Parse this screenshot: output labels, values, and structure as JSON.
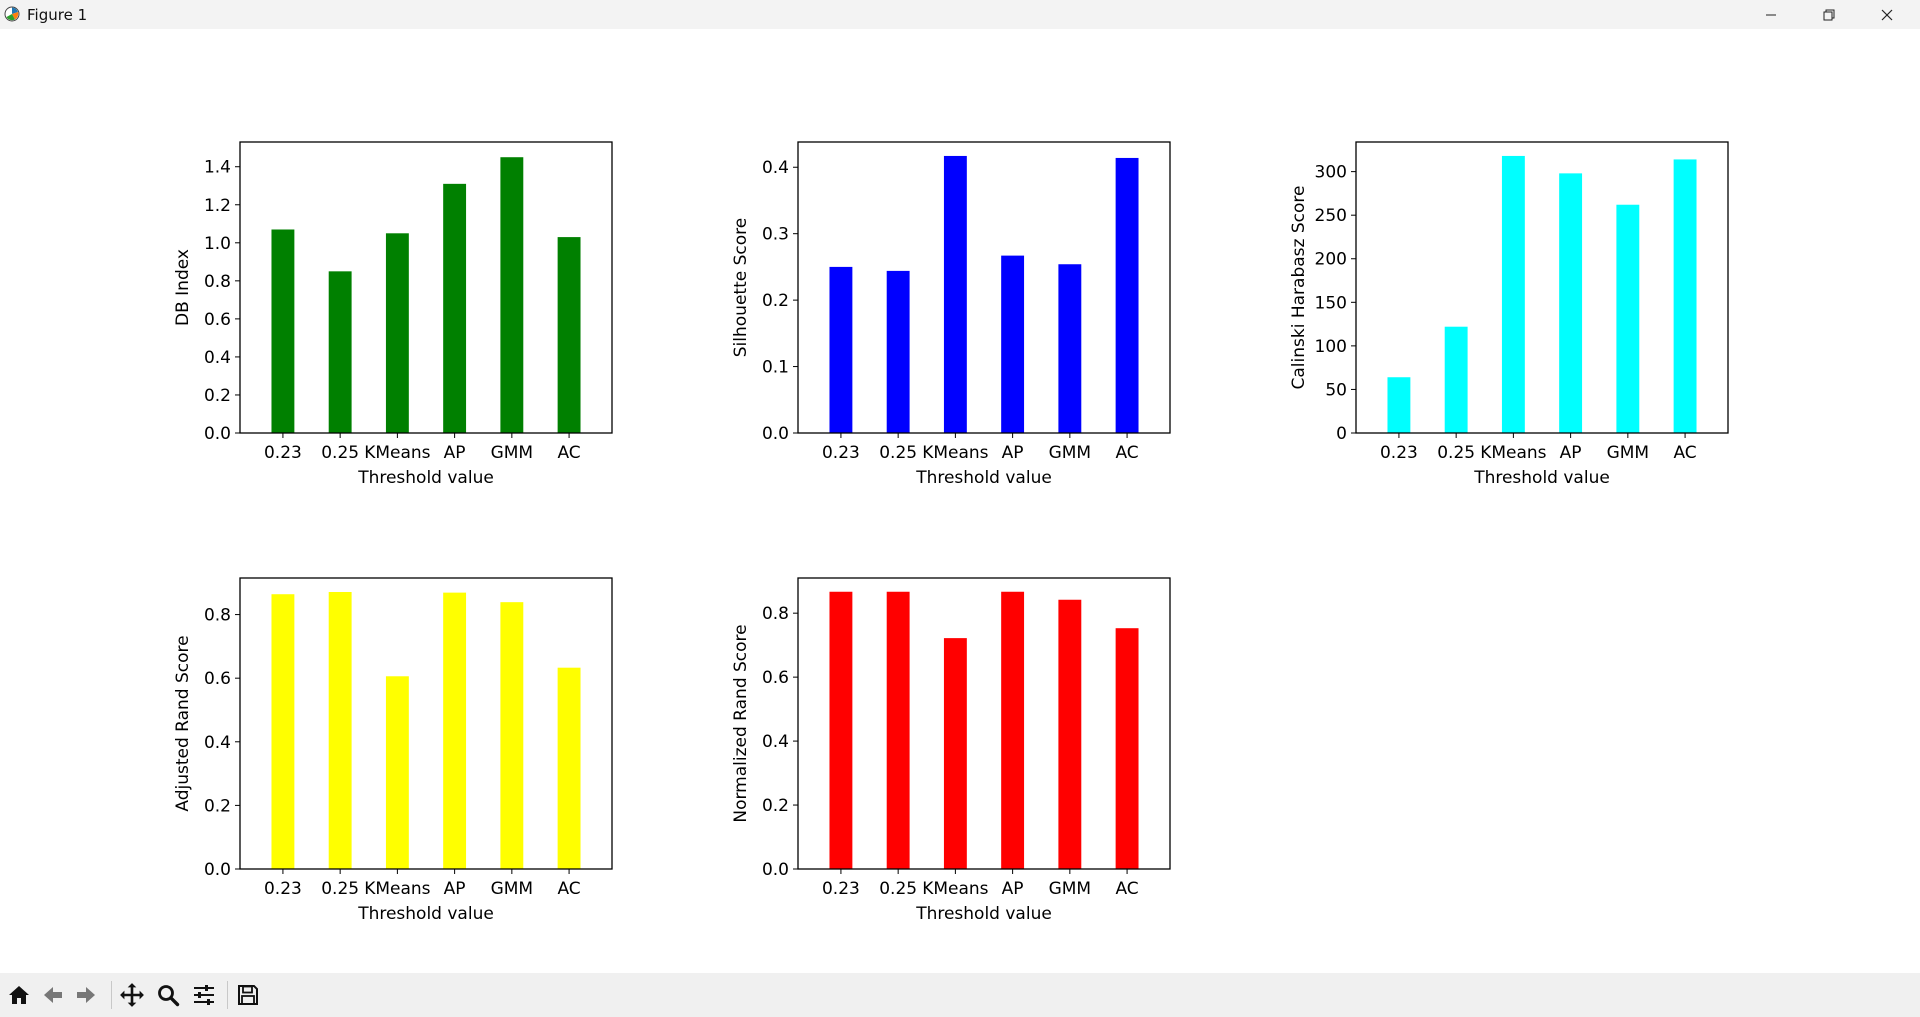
{
  "window": {
    "title": "Figure 1"
  },
  "toolbar": {
    "buttons": [
      {
        "icon": "home-icon"
      },
      {
        "icon": "back-arrow-icon"
      },
      {
        "icon": "forward-arrow-icon"
      },
      {
        "icon": "pan-move-icon"
      },
      {
        "icon": "zoom-magnifier-icon"
      },
      {
        "icon": "configure-subplots-icon"
      },
      {
        "icon": "save-disk-icon"
      }
    ]
  },
  "chart_data": [
    {
      "type": "bar",
      "categories": [
        "0.23",
        "0.25",
        "KMeans",
        "AP",
        "GMM",
        "AC"
      ],
      "values": [
        1.07,
        0.85,
        1.05,
        1.31,
        1.45,
        1.03
      ],
      "xlabel": "Threshold value",
      "ylabel": "DB Index",
      "ylim": [
        0,
        1.53
      ],
      "yticks": [
        0.0,
        0.2,
        0.4,
        0.6,
        0.8,
        1.0,
        1.2,
        1.4
      ],
      "ytick_labels": [
        "0.0",
        "0.2",
        "0.4",
        "0.6",
        "0.8",
        "1.0",
        "1.2",
        "1.4"
      ],
      "color": "#008000",
      "grid": false
    },
    {
      "type": "bar",
      "categories": [
        "0.23",
        "0.25",
        "KMeans",
        "AP",
        "GMM",
        "AC"
      ],
      "values": [
        0.25,
        0.244,
        0.417,
        0.267,
        0.254,
        0.414
      ],
      "xlabel": "Threshold value",
      "ylabel": "Silhouette Score",
      "ylim": [
        0,
        0.438
      ],
      "yticks": [
        0.0,
        0.1,
        0.2,
        0.3,
        0.4
      ],
      "ytick_labels": [
        "0.0",
        "0.1",
        "0.2",
        "0.3",
        "0.4"
      ],
      "color": "#0000ff",
      "grid": false
    },
    {
      "type": "bar",
      "categories": [
        "0.23",
        "0.25",
        "KMeans",
        "AP",
        "GMM",
        "AC"
      ],
      "values": [
        64,
        122,
        318,
        298,
        262,
        314
      ],
      "xlabel": "Threshold value",
      "ylabel": "Calinski Harabasz Score",
      "ylim": [
        0,
        334
      ],
      "yticks": [
        0,
        50,
        100,
        150,
        200,
        250,
        300
      ],
      "ytick_labels": [
        "0",
        "50",
        "100",
        "150",
        "200",
        "250",
        "300"
      ],
      "color": "#00ffff",
      "grid": false
    },
    {
      "type": "bar",
      "categories": [
        "0.23",
        "0.25",
        "KMeans",
        "AP",
        "GMM",
        "AC"
      ],
      "values": [
        0.864,
        0.871,
        0.606,
        0.869,
        0.839,
        0.633
      ],
      "xlabel": "Threshold value",
      "ylabel": "Adjusted Rand Score",
      "ylim": [
        0,
        0.915
      ],
      "yticks": [
        0.0,
        0.2,
        0.4,
        0.6,
        0.8
      ],
      "ytick_labels": [
        "0.0",
        "0.2",
        "0.4",
        "0.6",
        "0.8"
      ],
      "color": "#ffff00",
      "grid": false
    },
    {
      "type": "bar",
      "categories": [
        "0.23",
        "0.25",
        "KMeans",
        "AP",
        "GMM",
        "AC"
      ],
      "values": [
        0.867,
        0.867,
        0.722,
        0.867,
        0.842,
        0.753
      ],
      "xlabel": "Threshold value",
      "ylabel": "Normalized Rand Score",
      "ylim": [
        0,
        0.91
      ],
      "yticks": [
        0.0,
        0.2,
        0.4,
        0.6,
        0.8
      ],
      "ytick_labels": [
        "0.0",
        "0.2",
        "0.4",
        "0.6",
        "0.8"
      ],
      "color": "#ff0000",
      "grid": false
    }
  ]
}
